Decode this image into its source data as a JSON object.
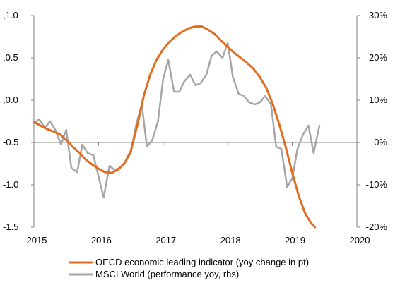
{
  "chart_data": {
    "type": "line",
    "x_axis": {
      "range": [
        2015,
        2020
      ],
      "ticks": [
        2015,
        2016,
        2017,
        2018,
        2019,
        2020
      ],
      "tick_labels": [
        "2015",
        "2016",
        "2017",
        "2018",
        "2019",
        "2020"
      ]
    },
    "y_axis_left": {
      "range": [
        -1.5,
        1.0
      ],
      "ticks": [
        1.0,
        0.5,
        0.0,
        -0.5,
        -1.0,
        -1.5
      ],
      "tick_labels": [
        ",1.0",
        ",0.5",
        ",0.0",
        "-0.5",
        "-1.0",
        "-1.5"
      ]
    },
    "y_axis_right": {
      "range": [
        -20,
        30
      ],
      "ticks": [
        30,
        20,
        10,
        0,
        -10,
        -20
      ],
      "tick_labels": [
        "30%",
        "20%",
        "10%",
        "0%",
        "-10%",
        "-20%"
      ]
    },
    "grid": false,
    "legend_position": "bottom",
    "series": [
      {
        "name": "OECD economic leading indicator (yoy change in pt)",
        "axis": "left",
        "color": "#e36c1e",
        "points": [
          [
            2015.0,
            -0.26
          ],
          [
            2015.1,
            -0.3
          ],
          [
            2015.2,
            -0.34
          ],
          [
            2015.3,
            -0.37
          ],
          [
            2015.4,
            -0.4
          ],
          [
            2015.5,
            -0.47
          ],
          [
            2015.6,
            -0.55
          ],
          [
            2015.7,
            -0.62
          ],
          [
            2015.8,
            -0.7
          ],
          [
            2015.9,
            -0.76
          ],
          [
            2016.0,
            -0.81
          ],
          [
            2016.1,
            -0.85
          ],
          [
            2016.2,
            -0.86
          ],
          [
            2016.3,
            -0.82
          ],
          [
            2016.4,
            -0.75
          ],
          [
            2016.5,
            -0.6
          ],
          [
            2016.6,
            -0.3
          ],
          [
            2016.7,
            0.05
          ],
          [
            2016.8,
            0.3
          ],
          [
            2016.9,
            0.48
          ],
          [
            2017.0,
            0.6
          ],
          [
            2017.1,
            0.69
          ],
          [
            2017.2,
            0.76
          ],
          [
            2017.3,
            0.81
          ],
          [
            2017.4,
            0.85
          ],
          [
            2017.5,
            0.87
          ],
          [
            2017.6,
            0.87
          ],
          [
            2017.7,
            0.83
          ],
          [
            2017.8,
            0.78
          ],
          [
            2017.9,
            0.7
          ],
          [
            2018.0,
            0.63
          ],
          [
            2018.1,
            0.56
          ],
          [
            2018.2,
            0.5
          ],
          [
            2018.3,
            0.44
          ],
          [
            2018.4,
            0.37
          ],
          [
            2018.5,
            0.27
          ],
          [
            2018.6,
            0.14
          ],
          [
            2018.7,
            -0.05
          ],
          [
            2018.8,
            -0.29
          ],
          [
            2018.9,
            -0.56
          ],
          [
            2019.0,
            -0.86
          ],
          [
            2019.1,
            -1.13
          ],
          [
            2019.2,
            -1.34
          ],
          [
            2019.3,
            -1.46
          ],
          [
            2019.35,
            -1.5
          ]
        ]
      },
      {
        "name": "MSCI World (performance yoy, rhs)",
        "axis": "right",
        "color": "#a6a6a6",
        "points": [
          [
            2015.0,
            4.5
          ],
          [
            2015.08,
            5.5
          ],
          [
            2015.17,
            3.5
          ],
          [
            2015.25,
            5.0
          ],
          [
            2015.33,
            3.0
          ],
          [
            2015.42,
            -0.5
          ],
          [
            2015.5,
            3.0
          ],
          [
            2015.58,
            -6.0
          ],
          [
            2015.67,
            -7.0
          ],
          [
            2015.75,
            -0.5
          ],
          [
            2015.83,
            -2.5
          ],
          [
            2015.92,
            -3.0
          ],
          [
            2016.0,
            -8.0
          ],
          [
            2016.08,
            -13.0
          ],
          [
            2016.17,
            -5.5
          ],
          [
            2016.25,
            -6.5
          ],
          [
            2016.33,
            -6.0
          ],
          [
            2016.42,
            -4.5
          ],
          [
            2016.5,
            -2.5
          ],
          [
            2016.58,
            4.0
          ],
          [
            2016.67,
            9.0
          ],
          [
            2016.75,
            -1.0
          ],
          [
            2016.83,
            0.5
          ],
          [
            2016.92,
            5.0
          ],
          [
            2017.0,
            15.0
          ],
          [
            2017.08,
            19.5
          ],
          [
            2017.17,
            12.0
          ],
          [
            2017.25,
            12.0
          ],
          [
            2017.33,
            14.5
          ],
          [
            2017.42,
            16.0
          ],
          [
            2017.5,
            13.5
          ],
          [
            2017.58,
            14.0
          ],
          [
            2017.67,
            16.0
          ],
          [
            2017.75,
            20.5
          ],
          [
            2017.83,
            21.5
          ],
          [
            2017.92,
            20.0
          ],
          [
            2018.0,
            23.5
          ],
          [
            2018.08,
            15.5
          ],
          [
            2018.17,
            11.5
          ],
          [
            2018.25,
            11.0
          ],
          [
            2018.33,
            9.5
          ],
          [
            2018.42,
            9.0
          ],
          [
            2018.5,
            9.5
          ],
          [
            2018.58,
            11.0
          ],
          [
            2018.67,
            9.0
          ],
          [
            2018.75,
            -1.0
          ],
          [
            2018.83,
            -1.5
          ],
          [
            2018.92,
            -10.5
          ],
          [
            2019.0,
            -8.5
          ],
          [
            2019.08,
            -1.5
          ],
          [
            2019.17,
            2.0
          ],
          [
            2019.25,
            4.0
          ],
          [
            2019.33,
            -2.5
          ],
          [
            2019.42,
            4.0
          ]
        ]
      }
    ]
  }
}
